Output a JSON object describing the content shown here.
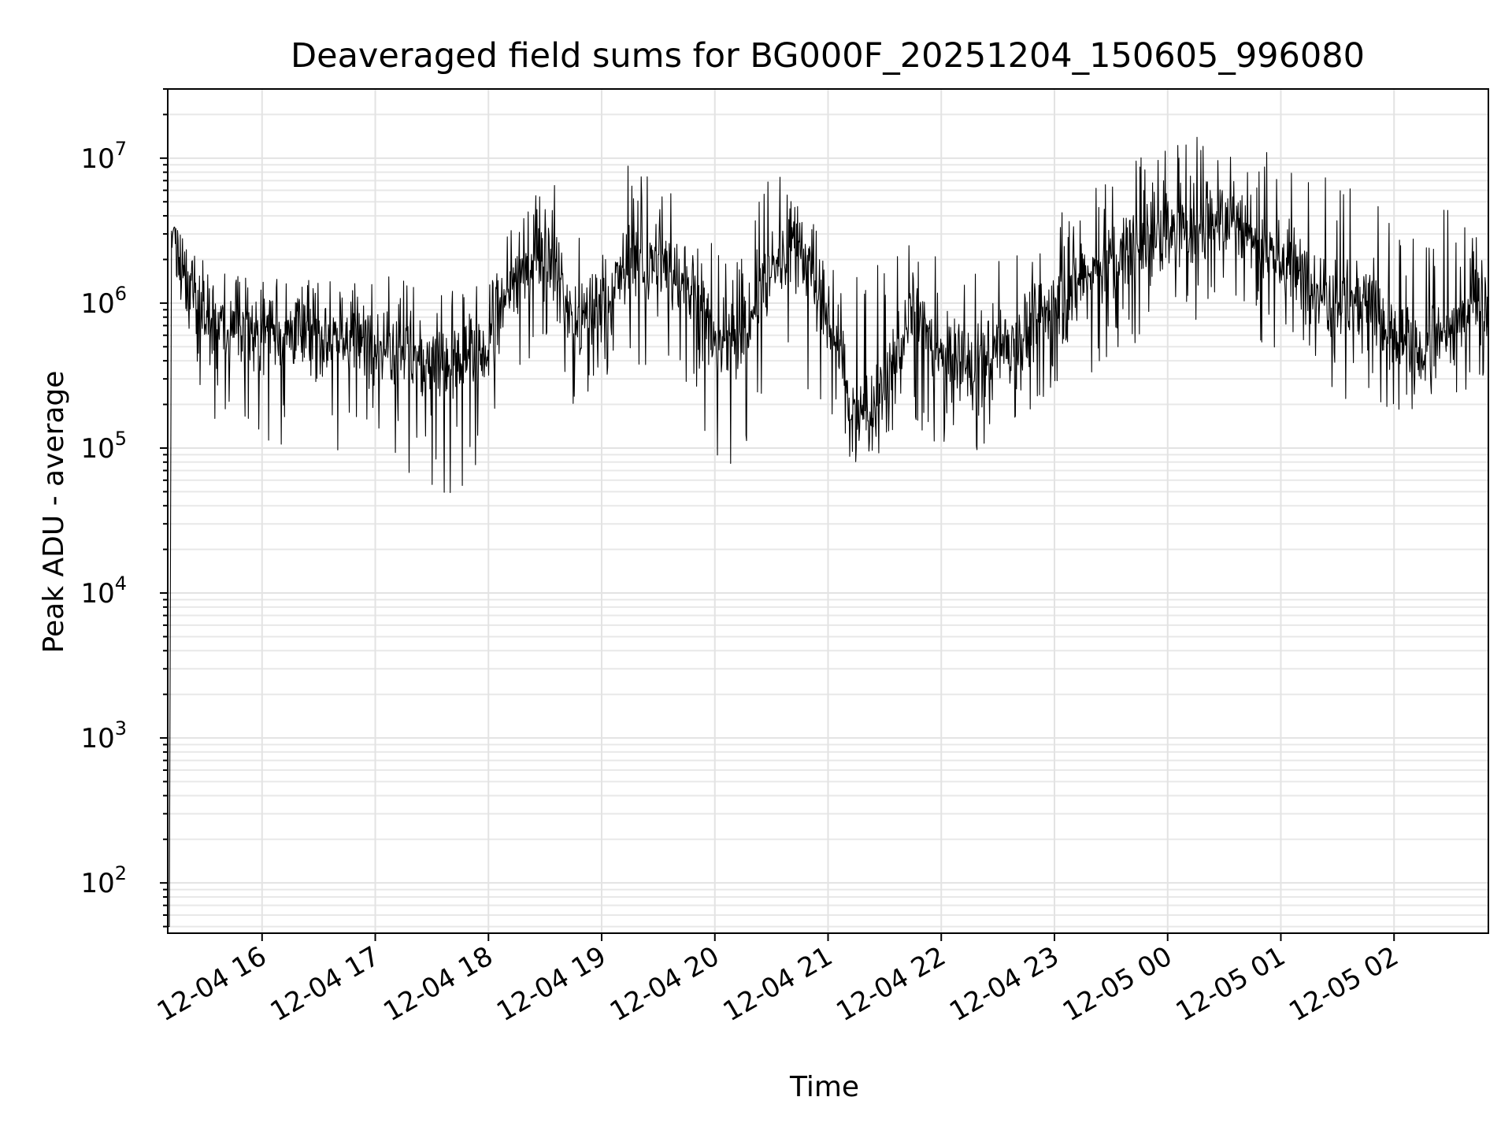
{
  "chart_data": {
    "type": "line",
    "title": "Deaveraged field sums for BG000F_20251204_150605_996080",
    "xlabel": "Time",
    "ylabel": "Peak ADU - average",
    "yscale": "log",
    "ylim": [
      45,
      30000000
    ],
    "xlim": [
      "2025-12-04 15:10",
      "2025-12-05 02:50"
    ],
    "grid": "major and minor",
    "line_color": "#000000",
    "x_ticks": [
      "12-04 16",
      "12-04 17",
      "12-04 18",
      "12-04 19",
      "12-04 20",
      "12-04 21",
      "12-04 22",
      "12-04 23",
      "12-05 00",
      "12-05 01",
      "12-05 02"
    ],
    "y_ticks": [
      {
        "base": "10",
        "exp": "2",
        "value": 100
      },
      {
        "base": "10",
        "exp": "3",
        "value": 1000
      },
      {
        "base": "10",
        "exp": "4",
        "value": 10000
      },
      {
        "base": "10",
        "exp": "5",
        "value": 100000
      },
      {
        "base": "10",
        "exp": "6",
        "value": 1000000
      },
      {
        "base": "10",
        "exp": "7",
        "value": 10000000
      }
    ],
    "series": [
      {
        "x": [
          "2025-12-04 15:10",
          "2025-12-04 15:12",
          "2025-12-04 15:15",
          "2025-12-04 15:20",
          "2025-12-04 15:30",
          "2025-12-04 15:45",
          "2025-12-04 16:00",
          "2025-12-04 16:15",
          "2025-12-04 16:30",
          "2025-12-04 16:45",
          "2025-12-04 17:00",
          "2025-12-04 17:15",
          "2025-12-04 17:30",
          "2025-12-04 17:45",
          "2025-12-04 18:00",
          "2025-12-04 18:15",
          "2025-12-04 18:30",
          "2025-12-04 18:45",
          "2025-12-04 19:00",
          "2025-12-04 19:15",
          "2025-12-04 19:30",
          "2025-12-04 19:45",
          "2025-12-04 20:00",
          "2025-12-04 20:15",
          "2025-12-04 20:30",
          "2025-12-04 20:45",
          "2025-12-04 21:00",
          "2025-12-04 21:15",
          "2025-12-04 21:30",
          "2025-12-04 21:45",
          "2025-12-04 22:00",
          "2025-12-04 22:15",
          "2025-12-04 22:30",
          "2025-12-04 22:45",
          "2025-12-04 23:00",
          "2025-12-04 23:15",
          "2025-12-04 23:30",
          "2025-12-04 23:45",
          "2025-12-05 00:00",
          "2025-12-05 00:15",
          "2025-12-05 00:30",
          "2025-12-05 00:45",
          "2025-12-05 01:00",
          "2025-12-05 01:15",
          "2025-12-05 01:30",
          "2025-12-05 01:45",
          "2025-12-05 02:00",
          "2025-12-05 02:15",
          "2025-12-05 02:30",
          "2025-12-05 02:45",
          "2025-12-05 02:50"
        ],
        "median": [
          50,
          2800000,
          2500000,
          1500000,
          700000,
          700000,
          650000,
          650000,
          600000,
          600000,
          550000,
          500000,
          400000,
          350000,
          550000,
          1500000,
          3000000,
          700000,
          900000,
          2000000,
          1800000,
          1500000,
          500000,
          600000,
          1800000,
          2500000,
          800000,
          150000,
          250000,
          900000,
          400000,
          350000,
          500000,
          600000,
          1000000,
          1500000,
          1800000,
          2500000,
          3000000,
          3500000,
          4000000,
          3000000,
          2000000,
          1500000,
          1000000,
          1200000,
          500000,
          500000,
          600000,
          1500000,
          1000000
        ],
        "high": [
          60,
          3500000,
          3200000,
          2500000,
          2000000,
          1600000,
          1600000,
          1500000,
          1400000,
          1500000,
          1600000,
          1700000,
          1300000,
          1200000,
          1500000,
          4000000,
          10000000,
          3000000,
          3500000,
          10000000,
          8000000,
          4000000,
          2500000,
          2500000,
          10000000,
          4500000,
          3000000,
          1500000,
          2000000,
          4000000,
          2000000,
          1700000,
          2000000,
          2500000,
          4000000,
          5000000,
          8000000,
          11000000,
          12000000,
          14000000,
          16000000,
          13000000,
          10000000,
          9000000,
          8000000,
          9000000,
          3000000,
          3000000,
          5000000,
          6000000,
          6000000
        ],
        "low": [
          45,
          2000000,
          1500000,
          600000,
          180000,
          120000,
          110000,
          100000,
          90000,
          80000,
          80000,
          70000,
          50000,
          45000,
          100000,
          300000,
          600000,
          200000,
          250000,
          400000,
          300000,
          200000,
          80000,
          70000,
          300000,
          200000,
          200000,
          55000,
          60000,
          150000,
          90000,
          70000,
          100000,
          150000,
          250000,
          300000,
          400000,
          500000,
          600000,
          700000,
          800000,
          600000,
          400000,
          300000,
          200000,
          250000,
          170000,
          180000,
          200000,
          300000,
          300000
        ]
      }
    ]
  }
}
